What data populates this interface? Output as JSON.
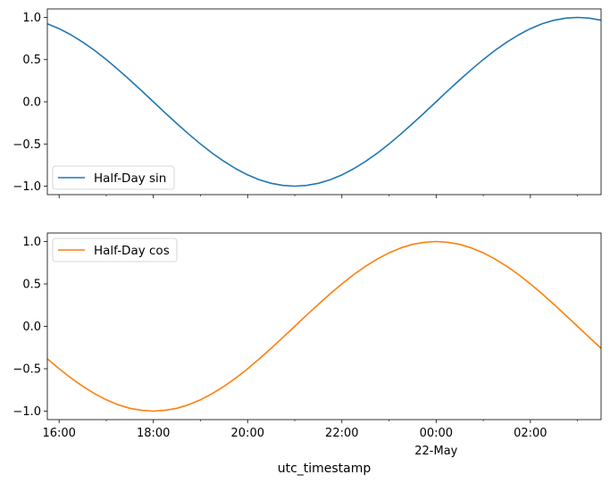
{
  "chart_data": [
    {
      "type": "line",
      "title": "",
      "xlabel": "",
      "ylabel": "",
      "series": [
        {
          "name": "Half-Day sin",
          "color": "#1f77b4",
          "x": [
            "2024-05-21T15:45",
            "2024-05-21T16:00",
            "2024-05-21T16:15",
            "2024-05-21T16:30",
            "2024-05-21T16:45",
            "2024-05-21T17:00",
            "2024-05-21T17:15",
            "2024-05-21T17:30",
            "2024-05-21T17:45",
            "2024-05-21T18:00",
            "2024-05-21T18:15",
            "2024-05-21T18:30",
            "2024-05-21T18:45",
            "2024-05-21T19:00",
            "2024-05-21T19:15",
            "2024-05-21T19:30",
            "2024-05-21T19:45",
            "2024-05-21T20:00",
            "2024-05-21T20:15",
            "2024-05-21T20:30",
            "2024-05-21T20:45",
            "2024-05-21T21:00",
            "2024-05-21T21:15",
            "2024-05-21T21:30",
            "2024-05-21T21:45",
            "2024-05-21T22:00",
            "2024-05-21T22:15",
            "2024-05-21T22:30",
            "2024-05-21T22:45",
            "2024-05-21T23:00",
            "2024-05-21T23:15",
            "2024-05-21T23:30",
            "2024-05-21T23:45",
            "2024-05-22T00:00",
            "2024-05-22T00:15",
            "2024-05-22T00:30",
            "2024-05-22T00:45",
            "2024-05-22T01:00",
            "2024-05-22T01:15",
            "2024-05-22T01:30",
            "2024-05-22T01:45",
            "2024-05-22T02:00",
            "2024-05-22T02:15",
            "2024-05-22T02:30",
            "2024-05-22T02:45",
            "2024-05-22T03:00",
            "2024-05-22T03:15",
            "2024-05-22T03:30"
          ],
          "y": [
            0.924,
            0.866,
            0.793,
            0.707,
            0.609,
            0.5,
            0.383,
            0.259,
            0.131,
            0.0,
            -0.131,
            -0.259,
            -0.383,
            -0.5,
            -0.609,
            -0.707,
            -0.793,
            -0.866,
            -0.924,
            -0.966,
            -0.991,
            -1.0,
            -0.991,
            -0.966,
            -0.924,
            -0.866,
            -0.793,
            -0.707,
            -0.609,
            -0.5,
            -0.383,
            -0.259,
            -0.131,
            0.0,
            0.131,
            0.259,
            0.383,
            0.5,
            0.609,
            0.707,
            0.793,
            0.866,
            0.924,
            0.966,
            0.991,
            1.0,
            0.991,
            0.966
          ]
        }
      ],
      "ylim": [
        -1.1,
        1.1
      ],
      "yticks": [
        -1.0,
        -0.5,
        0.0,
        0.5,
        1.0
      ],
      "ytick_labels": [
        "−1.0",
        "−0.5",
        "0.0",
        "0.5",
        "1.0"
      ],
      "xlim": [
        "2024-05-21T15:45",
        "2024-05-22T03:30"
      ],
      "legend_position": "lower-left",
      "grid": false
    },
    {
      "type": "line",
      "title": "",
      "xlabel": "utc_timestamp",
      "ylabel": "",
      "series": [
        {
          "name": "Half-Day cos",
          "color": "#ff7f0e",
          "x": [
            "2024-05-21T15:45",
            "2024-05-21T16:00",
            "2024-05-21T16:15",
            "2024-05-21T16:30",
            "2024-05-21T16:45",
            "2024-05-21T17:00",
            "2024-05-21T17:15",
            "2024-05-21T17:30",
            "2024-05-21T17:45",
            "2024-05-21T18:00",
            "2024-05-21T18:15",
            "2024-05-21T18:30",
            "2024-05-21T18:45",
            "2024-05-21T19:00",
            "2024-05-21T19:15",
            "2024-05-21T19:30",
            "2024-05-21T19:45",
            "2024-05-21T20:00",
            "2024-05-21T20:15",
            "2024-05-21T20:30",
            "2024-05-21T20:45",
            "2024-05-21T21:00",
            "2024-05-21T21:15",
            "2024-05-21T21:30",
            "2024-05-21T21:45",
            "2024-05-21T22:00",
            "2024-05-21T22:15",
            "2024-05-21T22:30",
            "2024-05-21T22:45",
            "2024-05-21T23:00",
            "2024-05-21T23:15",
            "2024-05-21T23:30",
            "2024-05-21T23:45",
            "2024-05-22T00:00",
            "2024-05-22T00:15",
            "2024-05-22T00:30",
            "2024-05-22T00:45",
            "2024-05-22T01:00",
            "2024-05-22T01:15",
            "2024-05-22T01:30",
            "2024-05-22T01:45",
            "2024-05-22T02:00",
            "2024-05-22T02:15",
            "2024-05-22T02:30",
            "2024-05-22T02:45",
            "2024-05-22T03:00",
            "2024-05-22T03:15",
            "2024-05-22T03:30"
          ],
          "y": [
            -0.383,
            -0.5,
            -0.609,
            -0.707,
            -0.793,
            -0.866,
            -0.924,
            -0.966,
            -0.991,
            -1.0,
            -0.991,
            -0.966,
            -0.924,
            -0.866,
            -0.793,
            -0.707,
            -0.609,
            -0.5,
            -0.383,
            -0.259,
            -0.131,
            0.0,
            0.131,
            0.259,
            0.383,
            0.5,
            0.609,
            0.707,
            0.793,
            0.866,
            0.924,
            0.966,
            0.991,
            1.0,
            0.991,
            0.966,
            0.924,
            0.866,
            0.793,
            0.707,
            0.609,
            0.5,
            0.383,
            0.259,
            0.131,
            0.0,
            -0.131,
            -0.259
          ]
        }
      ],
      "ylim": [
        -1.1,
        1.1
      ],
      "yticks": [
        -1.0,
        -0.5,
        0.0,
        0.5,
        1.0
      ],
      "ytick_labels": [
        "−1.0",
        "−0.5",
        "0.0",
        "0.5",
        "1.0"
      ],
      "xlim": [
        "2024-05-21T15:45",
        "2024-05-22T03:30"
      ],
      "xticks": [
        {
          "value": "2024-05-21T16:00",
          "label": "16:00",
          "sublabel": ""
        },
        {
          "value": "2024-05-21T18:00",
          "label": "18:00",
          "sublabel": ""
        },
        {
          "value": "2024-05-21T20:00",
          "label": "20:00",
          "sublabel": ""
        },
        {
          "value": "2024-05-21T22:00",
          "label": "22:00",
          "sublabel": ""
        },
        {
          "value": "2024-05-22T00:00",
          "label": "00:00",
          "sublabel": "22-May"
        },
        {
          "value": "2024-05-22T02:00",
          "label": "02:00",
          "sublabel": ""
        }
      ],
      "minor_xticks": [
        "2024-05-21T17:00",
        "2024-05-21T19:00",
        "2024-05-21T21:00",
        "2024-05-21T23:00",
        "2024-05-22T01:00",
        "2024-05-22T03:00"
      ],
      "legend_position": "upper-left",
      "grid": false
    }
  ]
}
